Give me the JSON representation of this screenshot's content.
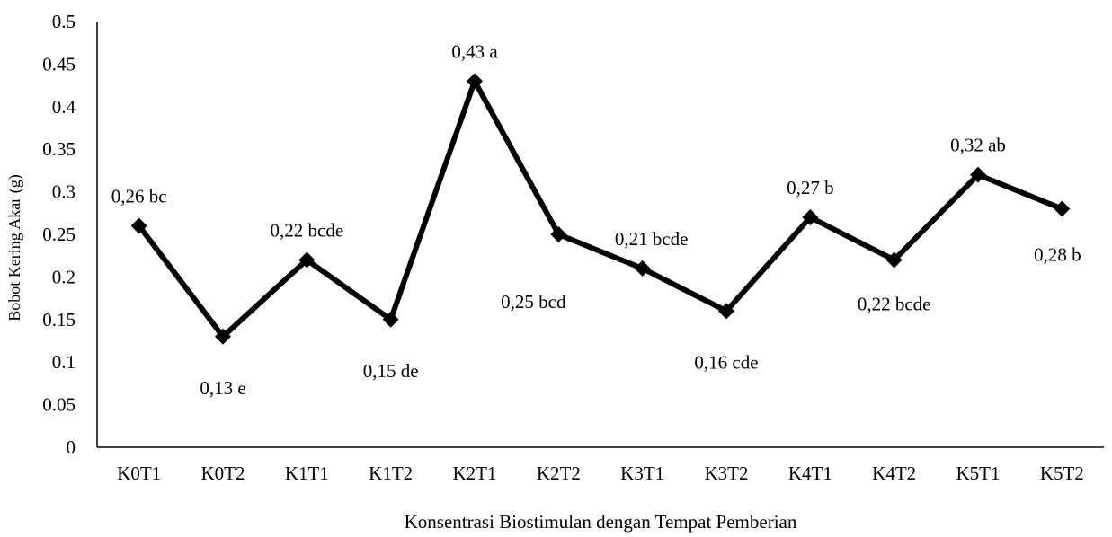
{
  "chart_data": {
    "type": "line",
    "title": "",
    "xlabel": "Konsentrasi Biostimulan dengan Tempat Pemberian",
    "ylabel": "Bobot Kering Akar (g)",
    "ylim": [
      0,
      0.5
    ],
    "yticks": [
      "0",
      "0.05",
      "0.1",
      "0.15",
      "0.2",
      "0.25",
      "0.3",
      "0.35",
      "0.4",
      "0.45",
      "0.5"
    ],
    "categories": [
      "K0T1",
      "K0T2",
      "K1T1",
      "K1T2",
      "K2T1",
      "K2T2",
      "K3T1",
      "K3T2",
      "K4T1",
      "K4T2",
      "K5T1",
      "K5T2"
    ],
    "values": [
      0.26,
      0.13,
      0.22,
      0.15,
      0.43,
      0.25,
      0.21,
      0.16,
      0.27,
      0.22,
      0.32,
      0.28
    ],
    "data_labels": [
      "0,26 bc",
      "0,13 e",
      "0,22 bcde",
      "0,15 de",
      "0,43 a",
      "0,25 bcd",
      "0,21 bcde",
      "0,16 cde",
      "0,27 b",
      "0,22 bcde",
      "0,32 ab",
      "0,28 b"
    ],
    "grid": false,
    "legend": "none",
    "line_color": "#000000",
    "marker": "diamond"
  }
}
